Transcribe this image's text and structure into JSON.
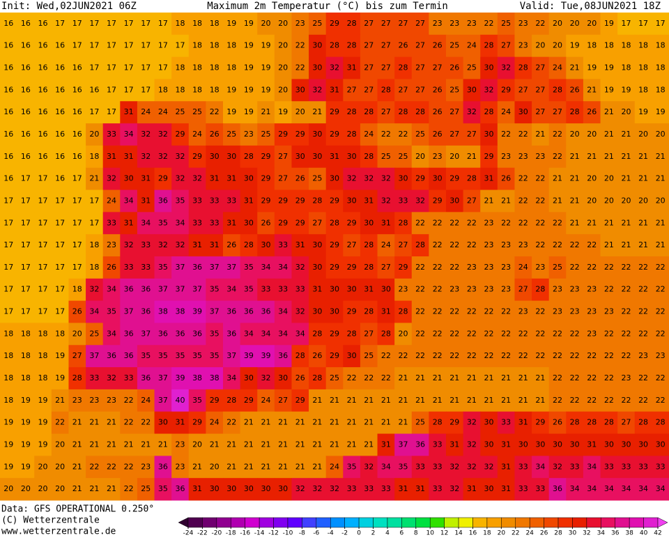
{
  "header": {
    "init": "Init: Wed,02JUN2021 06Z",
    "title": "Maximum 2m Temperatur (°C) bis zum Termin",
    "valid": "Valid: Tue,08JUN2021 18Z"
  },
  "footer": {
    "data": "Data: GFS OPERATIONAL 0.250°",
    "copyright": "(C) Wetterzentrale",
    "url": "www.wetterzentrale.de"
  },
  "map": {
    "grid": [
      [
        16,
        16,
        16,
        17,
        17,
        17,
        17,
        17,
        17,
        17,
        18,
        18,
        18,
        19,
        19,
        20,
        20,
        23,
        25,
        29,
        28,
        27,
        27,
        27,
        27,
        23,
        23,
        23,
        22,
        25,
        23,
        22,
        20,
        20,
        20,
        19,
        17,
        17,
        17
      ],
      [
        16,
        16,
        16,
        16,
        17,
        17,
        17,
        17,
        17,
        17,
        17,
        18,
        18,
        18,
        19,
        19,
        20,
        22,
        30,
        28,
        28,
        27,
        27,
        26,
        27,
        26,
        25,
        24,
        28,
        27,
        23,
        20,
        20,
        19,
        18,
        18,
        18,
        18,
        18
      ],
      [
        16,
        16,
        16,
        16,
        16,
        17,
        17,
        17,
        17,
        17,
        18,
        18,
        18,
        18,
        19,
        19,
        20,
        22,
        30,
        32,
        31,
        27,
        27,
        28,
        27,
        27,
        26,
        25,
        30,
        32,
        28,
        27,
        24,
        21,
        19,
        19,
        18,
        18,
        18
      ],
      [
        16,
        16,
        16,
        16,
        16,
        16,
        17,
        17,
        17,
        18,
        18,
        18,
        18,
        19,
        19,
        19,
        20,
        30,
        32,
        31,
        27,
        27,
        28,
        27,
        27,
        26,
        25,
        30,
        32,
        29,
        27,
        27,
        28,
        26,
        21,
        19,
        19,
        18,
        18
      ],
      [
        16,
        16,
        16,
        16,
        16,
        17,
        17,
        31,
        24,
        24,
        25,
        25,
        22,
        19,
        19,
        21,
        19,
        20,
        21,
        29,
        28,
        28,
        27,
        28,
        28,
        26,
        27,
        32,
        28,
        24,
        30,
        27,
        27,
        28,
        26,
        21,
        20,
        19,
        19
      ],
      [
        16,
        16,
        16,
        16,
        16,
        20,
        33,
        34,
        32,
        32,
        29,
        24,
        26,
        25,
        23,
        25,
        29,
        29,
        30,
        29,
        28,
        24,
        22,
        22,
        25,
        26,
        27,
        27,
        30,
        22,
        22,
        21,
        22,
        20,
        20,
        21,
        21,
        20,
        20
      ],
      [
        16,
        16,
        16,
        16,
        16,
        18,
        31,
        31,
        32,
        32,
        32,
        29,
        30,
        30,
        28,
        29,
        27,
        30,
        30,
        31,
        30,
        28,
        25,
        25,
        20,
        23,
        20,
        21,
        29,
        23,
        23,
        23,
        22,
        21,
        21,
        21,
        21,
        21,
        21
      ],
      [
        16,
        17,
        17,
        16,
        17,
        21,
        32,
        30,
        31,
        29,
        32,
        32,
        31,
        31,
        30,
        29,
        27,
        26,
        25,
        30,
        32,
        32,
        32,
        30,
        29,
        30,
        29,
        28,
        31,
        26,
        22,
        22,
        21,
        21,
        20,
        20,
        21,
        21,
        21
      ],
      [
        17,
        17,
        17,
        17,
        17,
        17,
        24,
        34,
        31,
        36,
        35,
        33,
        33,
        33,
        31,
        29,
        29,
        29,
        28,
        29,
        30,
        31,
        32,
        33,
        32,
        29,
        30,
        27,
        21,
        21,
        22,
        22,
        21,
        21,
        20,
        20,
        20,
        20,
        20
      ],
      [
        17,
        17,
        17,
        17,
        17,
        17,
        33,
        31,
        34,
        35,
        34,
        33,
        33,
        31,
        30,
        26,
        29,
        29,
        27,
        28,
        29,
        30,
        31,
        28,
        22,
        22,
        22,
        22,
        23,
        22,
        22,
        22,
        22,
        21,
        21,
        21,
        21,
        21,
        21
      ],
      [
        17,
        17,
        17,
        17,
        17,
        18,
        23,
        32,
        33,
        32,
        32,
        31,
        31,
        26,
        28,
        30,
        33,
        31,
        30,
        29,
        27,
        28,
        24,
        27,
        28,
        22,
        22,
        22,
        23,
        23,
        23,
        22,
        22,
        22,
        22,
        21,
        21,
        21,
        21
      ],
      [
        17,
        17,
        17,
        17,
        17,
        18,
        26,
        33,
        33,
        35,
        37,
        36,
        37,
        37,
        35,
        34,
        34,
        32,
        30,
        29,
        29,
        28,
        27,
        29,
        22,
        22,
        22,
        23,
        23,
        23,
        24,
        23,
        25,
        22,
        22,
        22,
        22,
        22,
        22
      ],
      [
        17,
        17,
        17,
        17,
        18,
        32,
        34,
        36,
        36,
        37,
        37,
        37,
        35,
        34,
        35,
        33,
        33,
        33,
        31,
        30,
        30,
        31,
        30,
        23,
        22,
        22,
        23,
        23,
        23,
        23,
        27,
        28,
        23,
        23,
        23,
        22,
        22,
        22,
        22
      ],
      [
        17,
        17,
        17,
        17,
        26,
        34,
        35,
        37,
        36,
        38,
        38,
        39,
        37,
        36,
        36,
        36,
        34,
        32,
        30,
        30,
        29,
        28,
        31,
        28,
        22,
        22,
        22,
        22,
        22,
        22,
        23,
        22,
        23,
        23,
        23,
        23,
        22,
        22,
        22
      ],
      [
        18,
        18,
        18,
        18,
        20,
        25,
        34,
        36,
        37,
        36,
        36,
        36,
        35,
        36,
        34,
        34,
        34,
        34,
        28,
        29,
        28,
        27,
        28,
        20,
        22,
        22,
        22,
        22,
        22,
        22,
        22,
        22,
        22,
        22,
        23,
        22,
        22,
        22,
        22
      ],
      [
        18,
        18,
        18,
        19,
        27,
        37,
        36,
        36,
        35,
        35,
        35,
        35,
        35,
        37,
        39,
        39,
        36,
        28,
        26,
        29,
        30,
        25,
        22,
        22,
        22,
        22,
        22,
        22,
        22,
        22,
        22,
        22,
        22,
        22,
        22,
        22,
        22,
        23,
        23
      ],
      [
        18,
        18,
        18,
        19,
        28,
        33,
        32,
        33,
        36,
        37,
        39,
        38,
        38,
        34,
        30,
        32,
        30,
        26,
        28,
        25,
        22,
        22,
        22,
        21,
        21,
        21,
        21,
        21,
        21,
        21,
        21,
        21,
        22,
        22,
        22,
        22,
        23,
        22,
        22
      ],
      [
        18,
        19,
        19,
        21,
        23,
        23,
        23,
        22,
        24,
        37,
        40,
        35,
        29,
        28,
        29,
        24,
        27,
        29,
        21,
        21,
        21,
        21,
        21,
        21,
        21,
        21,
        21,
        21,
        21,
        21,
        21,
        21,
        22,
        22,
        22,
        22,
        22,
        22,
        22
      ],
      [
        19,
        19,
        19,
        22,
        21,
        21,
        21,
        22,
        22,
        30,
        31,
        29,
        24,
        22,
        21,
        21,
        21,
        21,
        21,
        21,
        21,
        21,
        21,
        21,
        25,
        28,
        29,
        32,
        30,
        33,
        31,
        29,
        26,
        28,
        28,
        28,
        27,
        28,
        28
      ],
      [
        19,
        19,
        19,
        20,
        21,
        21,
        21,
        21,
        21,
        21,
        23,
        20,
        21,
        21,
        21,
        21,
        21,
        21,
        21,
        21,
        21,
        21,
        31,
        37,
        36,
        33,
        31,
        32,
        30,
        31,
        30,
        30,
        30,
        30,
        31,
        30,
        30,
        30,
        30
      ],
      [
        19,
        19,
        20,
        20,
        21,
        22,
        22,
        22,
        23,
        36,
        23,
        21,
        20,
        21,
        21,
        21,
        21,
        21,
        21,
        24,
        35,
        32,
        34,
        35,
        33,
        33,
        32,
        32,
        32,
        31,
        33,
        34,
        32,
        33,
        34,
        33,
        33,
        33,
        33
      ],
      [
        20,
        20,
        20,
        20,
        21,
        21,
        21,
        22,
        25,
        35,
        36,
        31,
        30,
        30,
        30,
        30,
        30,
        32,
        32,
        32,
        33,
        33,
        33,
        31,
        31,
        33,
        32,
        31,
        30,
        31,
        33,
        33,
        36,
        34,
        34,
        34,
        34,
        34,
        34
      ]
    ]
  },
  "colorbar": {
    "ticks": [
      -24,
      -22,
      -20,
      -18,
      -16,
      -14,
      -12,
      -10,
      -8,
      -6,
      -4,
      -2,
      0,
      2,
      4,
      6,
      8,
      10,
      12,
      14,
      16,
      18,
      20,
      22,
      24,
      26,
      28,
      30,
      32,
      34,
      36,
      38,
      40,
      42
    ],
    "colors": [
      "#300030",
      "#500050",
      "#700070",
      "#900090",
      "#b000b0",
      "#d000d0",
      "#a000e0",
      "#8000f0",
      "#6000ff",
      "#4040ff",
      "#2060ff",
      "#0090ff",
      "#00b0ff",
      "#00d0e0",
      "#00e0c0",
      "#00e0a0",
      "#00e070",
      "#00e040",
      "#30e000",
      "#c0f000",
      "#f0f000",
      "#f8b400",
      "#f8a000",
      "#f08c00",
      "#f07800",
      "#f06000",
      "#f04800",
      "#f03000",
      "#e82000",
      "#e81030",
      "#e81060",
      "#e01090",
      "#e010b0",
      "#e020d0",
      "#f040f0"
    ]
  }
}
